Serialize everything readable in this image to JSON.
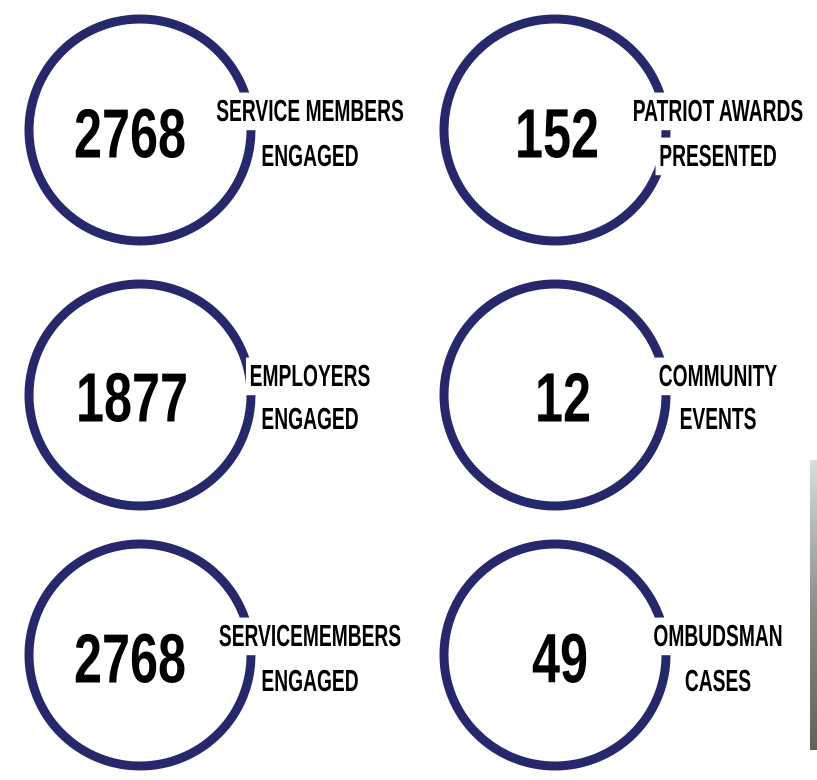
{
  "stats": [
    {
      "value": 2768,
      "label": [
        "SERVICE MEMBERS",
        "ENGAGED"
      ]
    },
    {
      "value": 152,
      "label": [
        "PATRIOT AWARDS",
        "PRESENTED"
      ]
    },
    {
      "value": 1877,
      "label": [
        "EMPLOYERS",
        "ENGAGED"
      ]
    },
    {
      "value": 12,
      "label": [
        "COMMUNITY",
        "EVENTS"
      ]
    },
    {
      "value": 2768,
      "label": [
        "SERVICEMEMBERS",
        "ENGAGED"
      ]
    },
    {
      "value": 49,
      "label": [
        "OMBUDSMAN",
        "CASES"
      ]
    }
  ]
}
